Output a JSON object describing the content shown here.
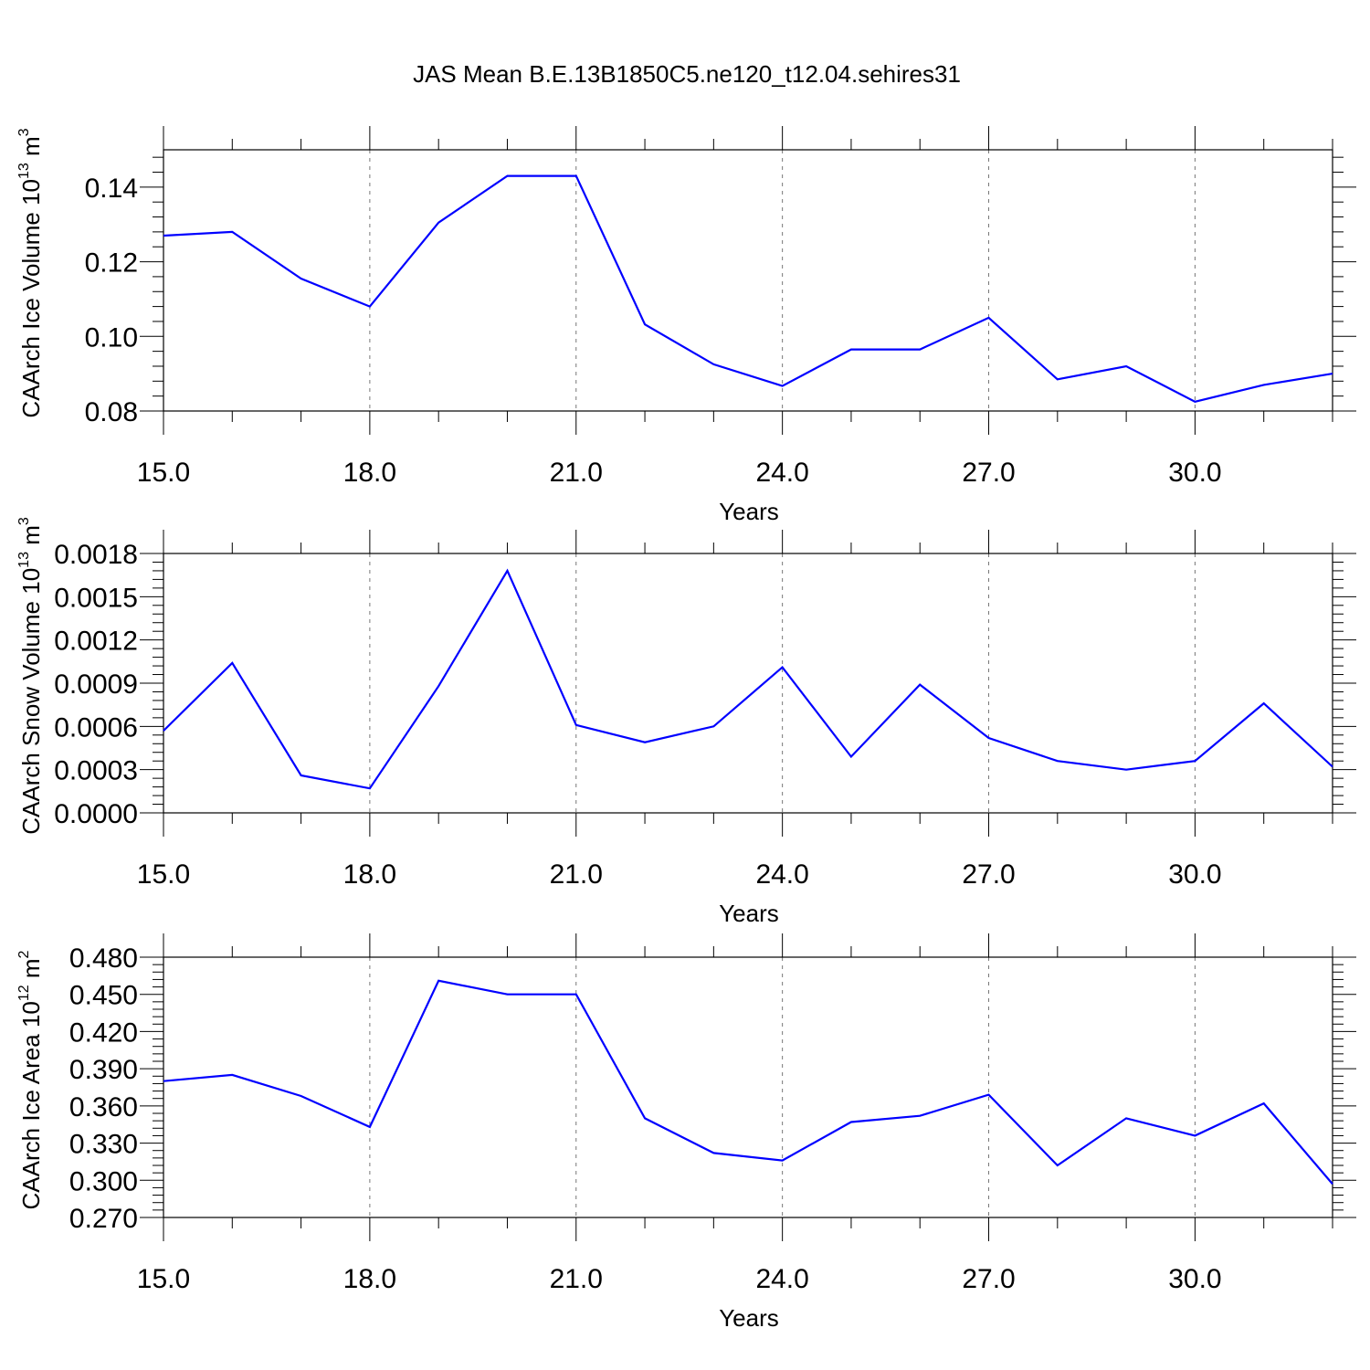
{
  "title": "JAS Mean B.E.13B1850C5.ne120_t12.04.sehires31",
  "colors": {
    "line": "#0000ff",
    "axes": "#000000",
    "grid": "#777777"
  },
  "chart_data": [
    {
      "type": "line",
      "title": "",
      "xlabel": "Years",
      "ylabel": {
        "main": "CAArch Ice Volume 10",
        "exp": "13",
        "unit": " m",
        "unit_exp": "3"
      },
      "x": [
        15,
        16,
        17,
        18,
        19,
        20,
        21,
        22,
        23,
        24,
        25,
        26,
        27,
        28,
        29,
        30,
        31,
        32
      ],
      "series": [
        {
          "values": [
            0.127,
            0.128,
            0.1155,
            0.108,
            0.1305,
            0.143,
            0.143,
            0.1032,
            0.0925,
            0.0867,
            0.0965,
            0.0965,
            0.105,
            0.0885,
            0.092,
            0.0825,
            0.087,
            0.09
          ]
        }
      ],
      "xlim": [
        15,
        32
      ],
      "ylim": [
        0.08,
        0.15
      ],
      "xticks": [
        15,
        18,
        21,
        24,
        27,
        30
      ],
      "xtick_labels": [
        "15.0",
        "18.0",
        "21.0",
        "24.0",
        "27.0",
        "30.0"
      ],
      "yticks": [
        0.08,
        0.1,
        0.12,
        0.14
      ],
      "ytick_labels": [
        "0.08",
        "0.10",
        "0.12",
        "0.14"
      ],
      "grid": "vertical dashed at major x ticks"
    },
    {
      "type": "line",
      "title": "",
      "xlabel": "Years",
      "ylabel": {
        "main": "CAArch Snow Volume 10",
        "exp": "13",
        "unit": " m",
        "unit_exp": "3"
      },
      "x": [
        15,
        16,
        17,
        18,
        19,
        20,
        21,
        22,
        23,
        24,
        25,
        26,
        27,
        28,
        29,
        30,
        31,
        32
      ],
      "series": [
        {
          "values": [
            0.00057,
            0.00104,
            0.00026,
            0.00017,
            0.00088,
            0.00168,
            0.00061,
            0.00049,
            0.0006,
            0.00101,
            0.00039,
            0.00089,
            0.00052,
            0.00036,
            0.0003,
            0.00036,
            0.00076,
            0.00032
          ]
        }
      ],
      "xlim": [
        15,
        32
      ],
      "ylim": [
        0,
        0.0018
      ],
      "xticks": [
        15,
        18,
        21,
        24,
        27,
        30
      ],
      "xtick_labels": [
        "15.0",
        "18.0",
        "21.0",
        "24.0",
        "27.0",
        "30.0"
      ],
      "yticks": [
        0,
        0.0003,
        0.0006,
        0.0009,
        0.0012,
        0.0015,
        0.0018
      ],
      "ytick_labels": [
        "0.0000",
        "0.0003",
        "0.0006",
        "0.0009",
        "0.0012",
        "0.0015",
        "0.0018"
      ],
      "grid": "vertical dashed at major x ticks"
    },
    {
      "type": "line",
      "title": "",
      "xlabel": "Years",
      "ylabel": {
        "main": "CAArch Ice Area 10",
        "exp": "12",
        "unit": " m",
        "unit_exp": "2"
      },
      "x": [
        15,
        16,
        17,
        18,
        19,
        20,
        21,
        22,
        23,
        24,
        25,
        26,
        27,
        28,
        29,
        30,
        31,
        32
      ],
      "series": [
        {
          "values": [
            0.38,
            0.385,
            0.368,
            0.343,
            0.461,
            0.45,
            0.45,
            0.35,
            0.322,
            0.316,
            0.347,
            0.352,
            0.369,
            0.312,
            0.35,
            0.336,
            0.362,
            0.297
          ]
        }
      ],
      "xlim": [
        15,
        32
      ],
      "ylim": [
        0.27,
        0.48
      ],
      "xticks": [
        15,
        18,
        21,
        24,
        27,
        30
      ],
      "xtick_labels": [
        "15.0",
        "18.0",
        "21.0",
        "24.0",
        "27.0",
        "30.0"
      ],
      "yticks": [
        0.27,
        0.3,
        0.33,
        0.36,
        0.39,
        0.42,
        0.45,
        0.48
      ],
      "ytick_labels": [
        "0.270",
        "0.300",
        "0.330",
        "0.360",
        "0.390",
        "0.420",
        "0.450",
        "0.480"
      ],
      "grid": "vertical dashed at major x ticks"
    }
  ]
}
